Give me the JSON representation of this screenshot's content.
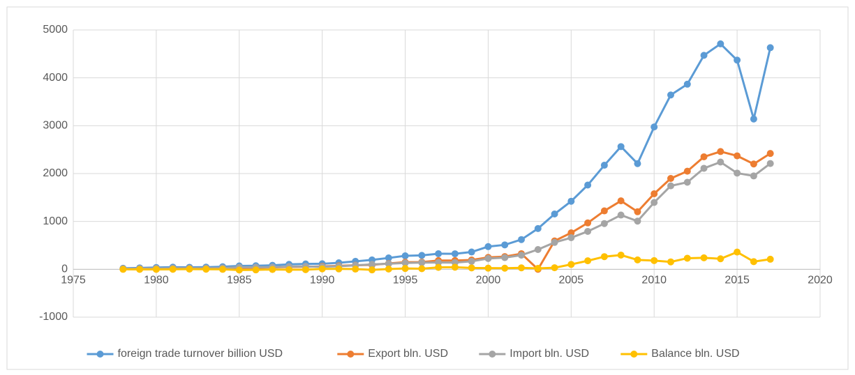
{
  "chart_data": {
    "type": "line",
    "x": [
      1978,
      1979,
      1980,
      1981,
      1982,
      1983,
      1984,
      1985,
      1986,
      1987,
      1988,
      1989,
      1990,
      1991,
      1992,
      1993,
      1994,
      1995,
      1996,
      1997,
      1998,
      1999,
      2000,
      2001,
      2002,
      2003,
      2004,
      2005,
      2006,
      2007,
      2008,
      2009,
      2010,
      2011,
      2012,
      2013,
      2014,
      2015,
      2016,
      2017
    ],
    "series": [
      {
        "name": "foreign trade turnover billion USD",
        "color": "#5b9bd5",
        "values": [
          21,
          29,
          38,
          44,
          42,
          44,
          54,
          70,
          74,
          83,
          103,
          112,
          115,
          136,
          166,
          196,
          237,
          281,
          290,
          325,
          324,
          361,
          474,
          510,
          621,
          851,
          1155,
          1422,
          1760,
          2174,
          2563,
          2208,
          2974,
          3642,
          3867,
          4470,
          4710,
          4370,
          3140,
          4630
        ]
      },
      {
        "name": "Export bln. USD",
        "color": "#ed7d31",
        "values": [
          10,
          14,
          18,
          22,
          22,
          22,
          26,
          27,
          31,
          39,
          48,
          53,
          62,
          72,
          85,
          92,
          121,
          149,
          151,
          183,
          184,
          195,
          249,
          266,
          326,
          0,
          593,
          762,
          969,
          1220,
          1430,
          1202,
          1578,
          1898,
          2049,
          2350,
          2460,
          2370,
          2200,
          2420
        ]
      },
      {
        "name": "Import bln. USD",
        "color": "#a5a5a5",
        "values": [
          11,
          16,
          20,
          22,
          19,
          21,
          27,
          42,
          43,
          44,
          55,
          59,
          53,
          64,
          81,
          104,
          116,
          132,
          139,
          142,
          140,
          166,
          225,
          244,
          295,
          413,
          561,
          660,
          792,
          956,
          1133,
          1006,
          1396,
          1743,
          1818,
          2110,
          2240,
          2010,
          1950,
          2210
        ]
      },
      {
        "name": "Balance bln. USD",
        "color": "#ffc000",
        "values": [
          -1,
          -2,
          -2,
          0,
          3,
          1,
          -1,
          -15,
          -12,
          -4,
          -8,
          -7,
          9,
          8,
          4,
          -12,
          5,
          17,
          12,
          40,
          43,
          29,
          24,
          23,
          30,
          20,
          32,
          102,
          178,
          264,
          297,
          196,
          182,
          155,
          231,
          240,
          220,
          360,
          160,
          210
        ]
      }
    ],
    "xlim": [
      1975,
      2020
    ],
    "xticks": [
      1975,
      1980,
      1985,
      1990,
      1995,
      2000,
      2005,
      2010,
      2015,
      2020
    ],
    "ylim": [
      -1000,
      5000
    ],
    "yticks": [
      -1000,
      0,
      1000,
      2000,
      3000,
      4000,
      5000
    ],
    "grid": true,
    "legend": "bottom"
  }
}
